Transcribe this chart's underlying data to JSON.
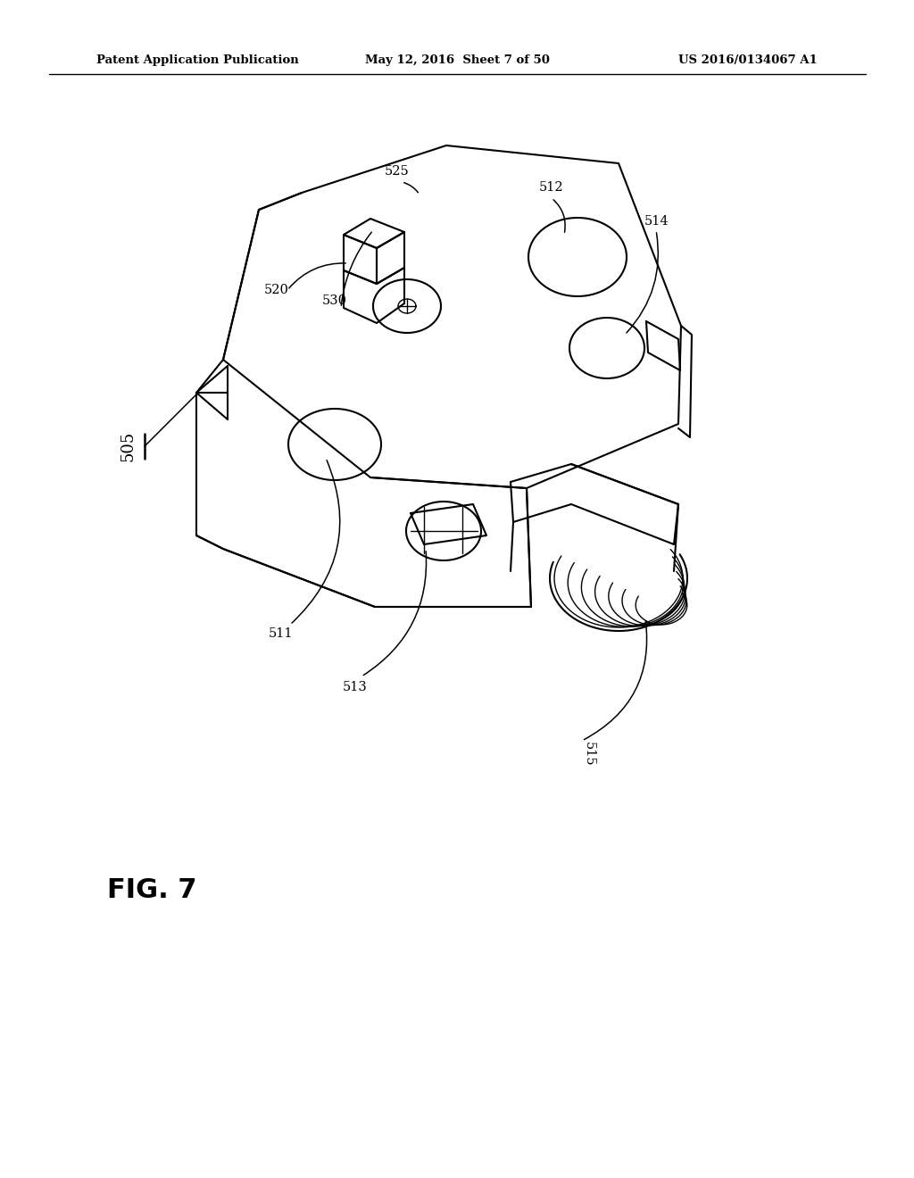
{
  "bg_color": "#ffffff",
  "header_left": "Patent Application Publication",
  "header_mid": "May 12, 2016  Sheet 7 of 50",
  "header_right": "US 2016/0134067 A1",
  "fig_label": "FIG. 7"
}
